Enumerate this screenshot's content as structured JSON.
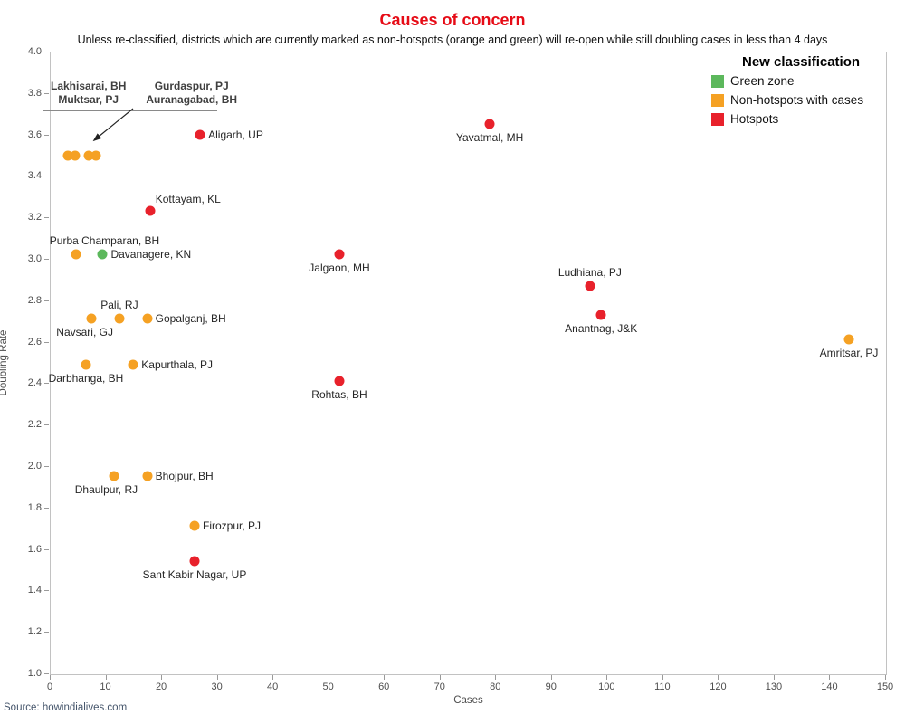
{
  "page": {
    "title": "Causes of concern",
    "subtitle": "Unless re-classified, districts which are currently marked as non-hotspots (orange and green) will re-open while still doubling cases in less than 4 days",
    "source": "Source: howindialives.com"
  },
  "colors": {
    "title": "#e60b16",
    "green": "#5cb85c",
    "orange": "#f5a123",
    "red": "#e8212b",
    "source_text": "#44546a",
    "axis_text": "#4d4d4d",
    "border": "#c2c2c2"
  },
  "legend": {
    "title": "New classification",
    "items": [
      {
        "label": "Green zone",
        "color_key": "green"
      },
      {
        "label": "Non-hotspots with cases",
        "color_key": "orange"
      },
      {
        "label": "Hotspots",
        "color_key": "red"
      }
    ]
  },
  "annotation": {
    "rows": [
      [
        "Lakhisarai, BH",
        "Gurdaspur, PJ"
      ],
      [
        "Muktsar, PJ",
        "Auranagabad, BH"
      ]
    ]
  },
  "chart_data": {
    "type": "scatter",
    "title": "Causes of concern",
    "xlabel": "Cases",
    "ylabel": "Doubling Rate",
    "xlim": [
      0,
      150
    ],
    "ylim": [
      1.0,
      4.0
    ],
    "x_tick_step": 10,
    "y_tick_step": 0.2,
    "grid": false,
    "legend_position": "top-right",
    "series": [
      {
        "name": "Green zone",
        "color_key": "green",
        "points": [
          {
            "district": "Davanagere, KN",
            "x": 9.5,
            "y": 3.02,
            "label_pos": "right"
          }
        ]
      },
      {
        "name": "Non-hotspots with cases",
        "color_key": "orange",
        "points": [
          {
            "district": "Lakhisarai, BH",
            "x": 3.2,
            "y": 3.5,
            "label_pos": "none"
          },
          {
            "district": "Muktsar, PJ",
            "x": 4.6,
            "y": 3.5,
            "label_pos": "none"
          },
          {
            "district": "Gurdaspur, PJ",
            "x": 7.0,
            "y": 3.5,
            "label_pos": "none"
          },
          {
            "district": "Auranagabad, BH",
            "x": 8.3,
            "y": 3.5,
            "label_pos": "none"
          },
          {
            "district": "Purba Champaran, BH",
            "x": 4.7,
            "y": 3.02,
            "label_pos": "above-left"
          },
          {
            "district": "Navsari, GJ",
            "x": 7.5,
            "y": 2.71,
            "label_pos": "below-left"
          },
          {
            "district": "Pali, RJ",
            "x": 12.5,
            "y": 2.71,
            "label_pos": "above"
          },
          {
            "district": "Gopalganj, BH",
            "x": 17.5,
            "y": 2.71,
            "label_pos": "right"
          },
          {
            "district": "Darbhanga, BH",
            "x": 6.5,
            "y": 2.49,
            "label_pos": "below"
          },
          {
            "district": "Kapurthala, PJ",
            "x": 15,
            "y": 2.49,
            "label_pos": "right"
          },
          {
            "district": "Dhaulpur, RJ",
            "x": 11.5,
            "y": 1.95,
            "label_pos": "below-left"
          },
          {
            "district": "Bhojpur, BH",
            "x": 17.5,
            "y": 1.95,
            "label_pos": "right"
          },
          {
            "district": "Firozpur, PJ",
            "x": 26,
            "y": 1.71,
            "label_pos": "right"
          },
          {
            "district": "Amritsar, PJ",
            "x": 143.5,
            "y": 2.61,
            "label_pos": "below"
          }
        ]
      },
      {
        "name": "Hotspots",
        "color_key": "red",
        "points": [
          {
            "district": "Aligarh, UP",
            "x": 27,
            "y": 3.6,
            "label_pos": "right"
          },
          {
            "district": "Yavatmal, MH",
            "x": 79,
            "y": 3.65,
            "label_pos": "below"
          },
          {
            "district": "Kottayam, KL",
            "x": 18,
            "y": 3.23,
            "label_pos": "above-right"
          },
          {
            "district": "Jalgaon, MH",
            "x": 52,
            "y": 3.02,
            "label_pos": "below"
          },
          {
            "district": "Ludhiana, PJ",
            "x": 97,
            "y": 2.87,
            "label_pos": "above"
          },
          {
            "district": "Anantnag, J&K",
            "x": 99,
            "y": 2.73,
            "label_pos": "below"
          },
          {
            "district": "Rohtas, BH",
            "x": 52,
            "y": 2.41,
            "label_pos": "below"
          },
          {
            "district": "Sant Kabir Nagar, UP",
            "x": 26,
            "y": 1.54,
            "label_pos": "below"
          }
        ]
      }
    ]
  }
}
